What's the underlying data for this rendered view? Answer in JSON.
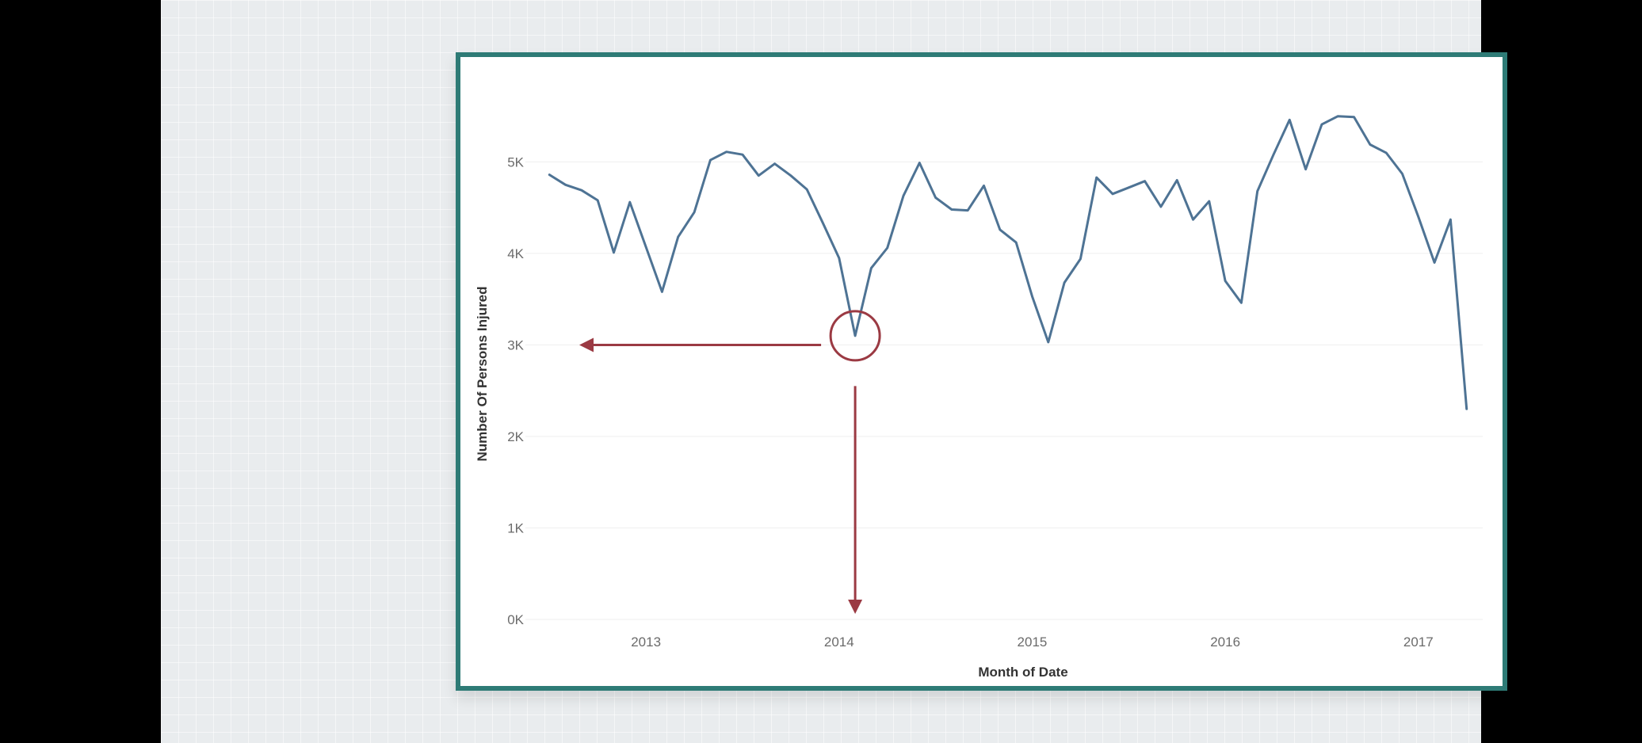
{
  "chart_data": {
    "type": "line",
    "title": "",
    "xlabel": "Month of Date",
    "ylabel": "Number Of Persons Injured",
    "ylim": [
      0,
      5800
    ],
    "yticks": [
      {
        "value": 0,
        "label": "0K"
      },
      {
        "value": 1000,
        "label": "1K"
      },
      {
        "value": 2000,
        "label": "2K"
      },
      {
        "value": 3000,
        "label": "3K"
      },
      {
        "value": 4000,
        "label": "4K"
      },
      {
        "value": 5000,
        "label": "5K"
      }
    ],
    "xticks": [
      {
        "value": "2013-01",
        "label": "2013"
      },
      {
        "value": "2014-01",
        "label": "2014"
      },
      {
        "value": "2015-01",
        "label": "2015"
      },
      {
        "value": "2016-01",
        "label": "2016"
      },
      {
        "value": "2017-01",
        "label": "2017"
      }
    ],
    "xlim": [
      "2012-06",
      "2017-05"
    ],
    "grid": true,
    "series": [
      {
        "color": "#4e7394",
        "x": [
          "2012-07",
          "2012-08",
          "2012-09",
          "2012-10",
          "2012-11",
          "2012-12",
          "2013-01",
          "2013-02",
          "2013-03",
          "2013-04",
          "2013-05",
          "2013-06",
          "2013-07",
          "2013-08",
          "2013-09",
          "2013-10",
          "2013-11",
          "2013-12",
          "2014-01",
          "2014-02",
          "2014-03",
          "2014-04",
          "2014-05",
          "2014-06",
          "2014-07",
          "2014-08",
          "2014-09",
          "2014-10",
          "2014-11",
          "2014-12",
          "2015-01",
          "2015-02",
          "2015-03",
          "2015-04",
          "2015-05",
          "2015-06",
          "2015-07",
          "2015-08",
          "2015-09",
          "2015-10",
          "2015-11",
          "2015-12",
          "2016-01",
          "2016-02",
          "2016-03",
          "2016-04",
          "2016-05",
          "2016-06",
          "2016-07",
          "2016-08",
          "2016-09",
          "2016-10",
          "2016-11",
          "2016-12",
          "2017-01",
          "2017-02",
          "2017-03",
          "2017-04"
        ],
        "values": [
          4860,
          4750,
          4690,
          4580,
          4010,
          4560,
          4070,
          3580,
          4180,
          4450,
          5020,
          5110,
          5080,
          4850,
          4980,
          4850,
          4700,
          4330,
          3950,
          3100,
          3840,
          4060,
          4630,
          4990,
          4610,
          4480,
          4470,
          4740,
          4260,
          4120,
          3530,
          3030,
          3680,
          3940,
          4830,
          4650,
          4720,
          4790,
          4510,
          4800,
          4370,
          4570,
          3700,
          3460,
          4680,
          5080,
          5460,
          4920,
          5410,
          5500,
          5490,
          5190,
          5100,
          4870,
          4400,
          3900,
          4370,
          2300
        ]
      }
    ],
    "annotations": [
      {
        "type": "circle",
        "x": "2014-02",
        "y": 3100,
        "color": "#9b3a43"
      },
      {
        "type": "arrow",
        "from": {
          "x": "2014-02",
          "y": 3000
        },
        "to_axis": "y",
        "color": "#9b3a43"
      },
      {
        "type": "arrow",
        "from": {
          "x": "2014-02",
          "y": 2550
        },
        "to_axis": "x",
        "color": "#9b3a43"
      }
    ]
  }
}
